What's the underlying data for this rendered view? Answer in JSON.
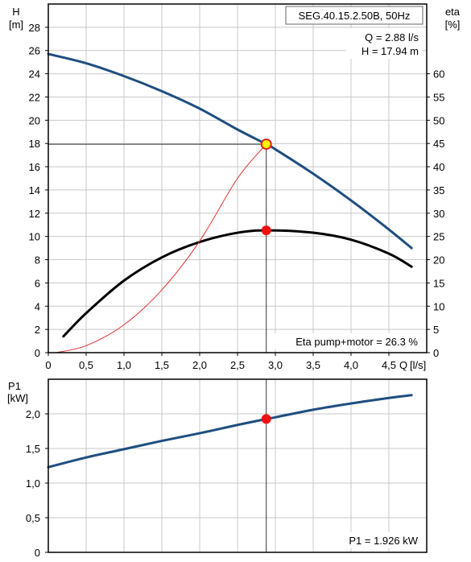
{
  "chart_data": [
    {
      "type": "line",
      "title": "SEG.40.15.2.50B, 50Hz",
      "xlabel": "Q [l/s]",
      "x_name": "Q",
      "x_unit": "[l/s]",
      "ylabel": "H [m]",
      "y_name": "H",
      "y_unit": "[m]",
      "y2label": "eta [%]",
      "y2_name": "eta",
      "y2_unit": "[%]",
      "xlim": [
        0,
        5.0
      ],
      "ylim": [
        0,
        30
      ],
      "y2lim": [
        0,
        75
      ],
      "xticks": [
        "0",
        "0,5",
        "1,0",
        "1,5",
        "2,0",
        "2,5",
        "3,0",
        "3,5",
        "4,0",
        "4,5"
      ],
      "xtick_values": [
        0,
        0.5,
        1.0,
        1.5,
        2.0,
        2.5,
        3.0,
        3.5,
        4.0,
        4.5
      ],
      "yticks": [
        "0",
        "2",
        "4",
        "6",
        "8",
        "10",
        "12",
        "14",
        "16",
        "18",
        "20",
        "22",
        "24",
        "26",
        "28"
      ],
      "ytick_values": [
        0,
        2,
        4,
        6,
        8,
        10,
        12,
        14,
        16,
        18,
        20,
        22,
        24,
        26,
        28
      ],
      "y2ticks": [
        "0",
        "5",
        "10",
        "15",
        "20",
        "25",
        "30",
        "35",
        "40",
        "45",
        "50",
        "55",
        "60"
      ],
      "y2tick_values": [
        0,
        5,
        10,
        15,
        20,
        25,
        30,
        35,
        40,
        45,
        50,
        55,
        60
      ],
      "grid": true,
      "series": [
        {
          "key": "head",
          "axis": "left",
          "color": "#1f4e80",
          "x": [
            0,
            0.5,
            1.0,
            1.5,
            2.0,
            2.5,
            2.88,
            3.0,
            3.5,
            4.0,
            4.5,
            4.8
          ],
          "y": [
            25.7,
            24.9,
            23.8,
            22.5,
            21.0,
            19.2,
            17.94,
            17.5,
            15.4,
            13.1,
            10.6,
            9.0
          ]
        },
        {
          "key": "efficiency",
          "axis": "right",
          "color": "#000000",
          "x": [
            0.2,
            0.5,
            1.0,
            1.5,
            2.0,
            2.5,
            2.9,
            3.5,
            4.0,
            4.5,
            4.8
          ],
          "y": [
            3.5,
            8.5,
            15.5,
            20.5,
            23.8,
            25.8,
            26.3,
            25.8,
            24.3,
            21.3,
            18.5
          ]
        },
        {
          "key": "system",
          "axis": "left",
          "color": "#e03030",
          "x": [
            0.1,
            0.5,
            1.0,
            1.5,
            2.0,
            2.5,
            2.88
          ],
          "y": [
            0.0,
            0.6,
            2.4,
            5.4,
            9.6,
            15.0,
            17.94
          ]
        }
      ],
      "operating_point": {
        "x": 2.88,
        "y": 17.94,
        "eta_value": 26.3
      },
      "annotations": {
        "model": "SEG.40.15.2.50B, 50Hz",
        "q": "Q = 2.88 l/s",
        "h": "H = 17.94 m",
        "eta": "Eta pump+motor = 26.3 %"
      }
    },
    {
      "type": "line",
      "xlabel": "",
      "ylabel": "P1 [kW]",
      "y_name": "P1",
      "y_unit": "[kW]",
      "xlim": [
        0,
        5.0
      ],
      "ylim": [
        0,
        2.5
      ],
      "yticks": [
        "0",
        "0,5",
        "1,0",
        "1,5",
        "2,0"
      ],
      "ytick_values": [
        0,
        0.5,
        1.0,
        1.5,
        2.0
      ],
      "grid": true,
      "series": [
        {
          "key": "power",
          "color": "#1f4e80",
          "x": [
            0,
            0.5,
            1.0,
            1.5,
            2.0,
            2.5,
            2.88,
            3.0,
            3.5,
            4.0,
            4.5,
            4.8
          ],
          "y": [
            1.23,
            1.37,
            1.49,
            1.61,
            1.72,
            1.84,
            1.926,
            1.95,
            2.06,
            2.15,
            2.23,
            2.27
          ]
        }
      ],
      "operating_point": {
        "x": 2.88,
        "y": 1.926
      },
      "annotations": {
        "p1": "P1 = 1.926 kW"
      }
    }
  ]
}
